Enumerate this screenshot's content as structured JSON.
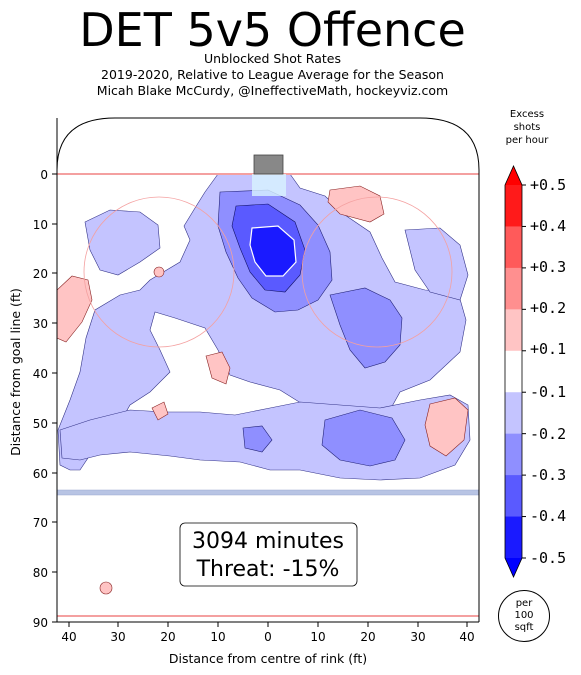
{
  "title": "DET 5v5 Offence",
  "subtitle_lines": [
    "Unblocked Shot Rates",
    "2019-2020, Relative to League Average for the Season",
    "Micah Blake McCurdy, @IneffectiveMath, hockeyviz.com"
  ],
  "chart_data": {
    "type": "heatmap",
    "xlabel": "Distance from centre of rink (ft)",
    "ylabel": "Distance from goal line (ft)",
    "xlim": [
      42.5,
      -42.5
    ],
    "ylim": [
      90,
      -11
    ],
    "x_ticks": [
      "40",
      "30",
      "20",
      "10",
      "0",
      "10",
      "20",
      "30",
      "40"
    ],
    "y_ticks": [
      "0",
      "10",
      "20",
      "30",
      "40",
      "50",
      "60",
      "70",
      "80",
      "90"
    ],
    "annotation": {
      "minutes": "3094 minutes",
      "threat": "Threat: -15%"
    },
    "colorbar": {
      "title_lines": [
        "Excess",
        "shots",
        "per hour"
      ],
      "tick_labels": [
        "+0.5",
        "+0.4",
        "+0.3",
        "+0.2",
        "+0.1",
        "-0.1",
        "-0.2",
        "-0.3",
        "-0.4",
        "-0.5"
      ],
      "levels": [
        0.5,
        0.4,
        0.3,
        0.2,
        0.1,
        -0.1,
        -0.2,
        -0.3,
        -0.4,
        -0.5
      ],
      "colors": [
        "#ff1a1a",
        "#ff5a5a",
        "#ff8f8f",
        "#ffc4c4",
        "#ffffff",
        "#c4c4ff",
        "#8f8fff",
        "#5a5aff",
        "#1a1aff"
      ],
      "units_lines": [
        "per",
        "100",
        "sqft"
      ]
    }
  }
}
